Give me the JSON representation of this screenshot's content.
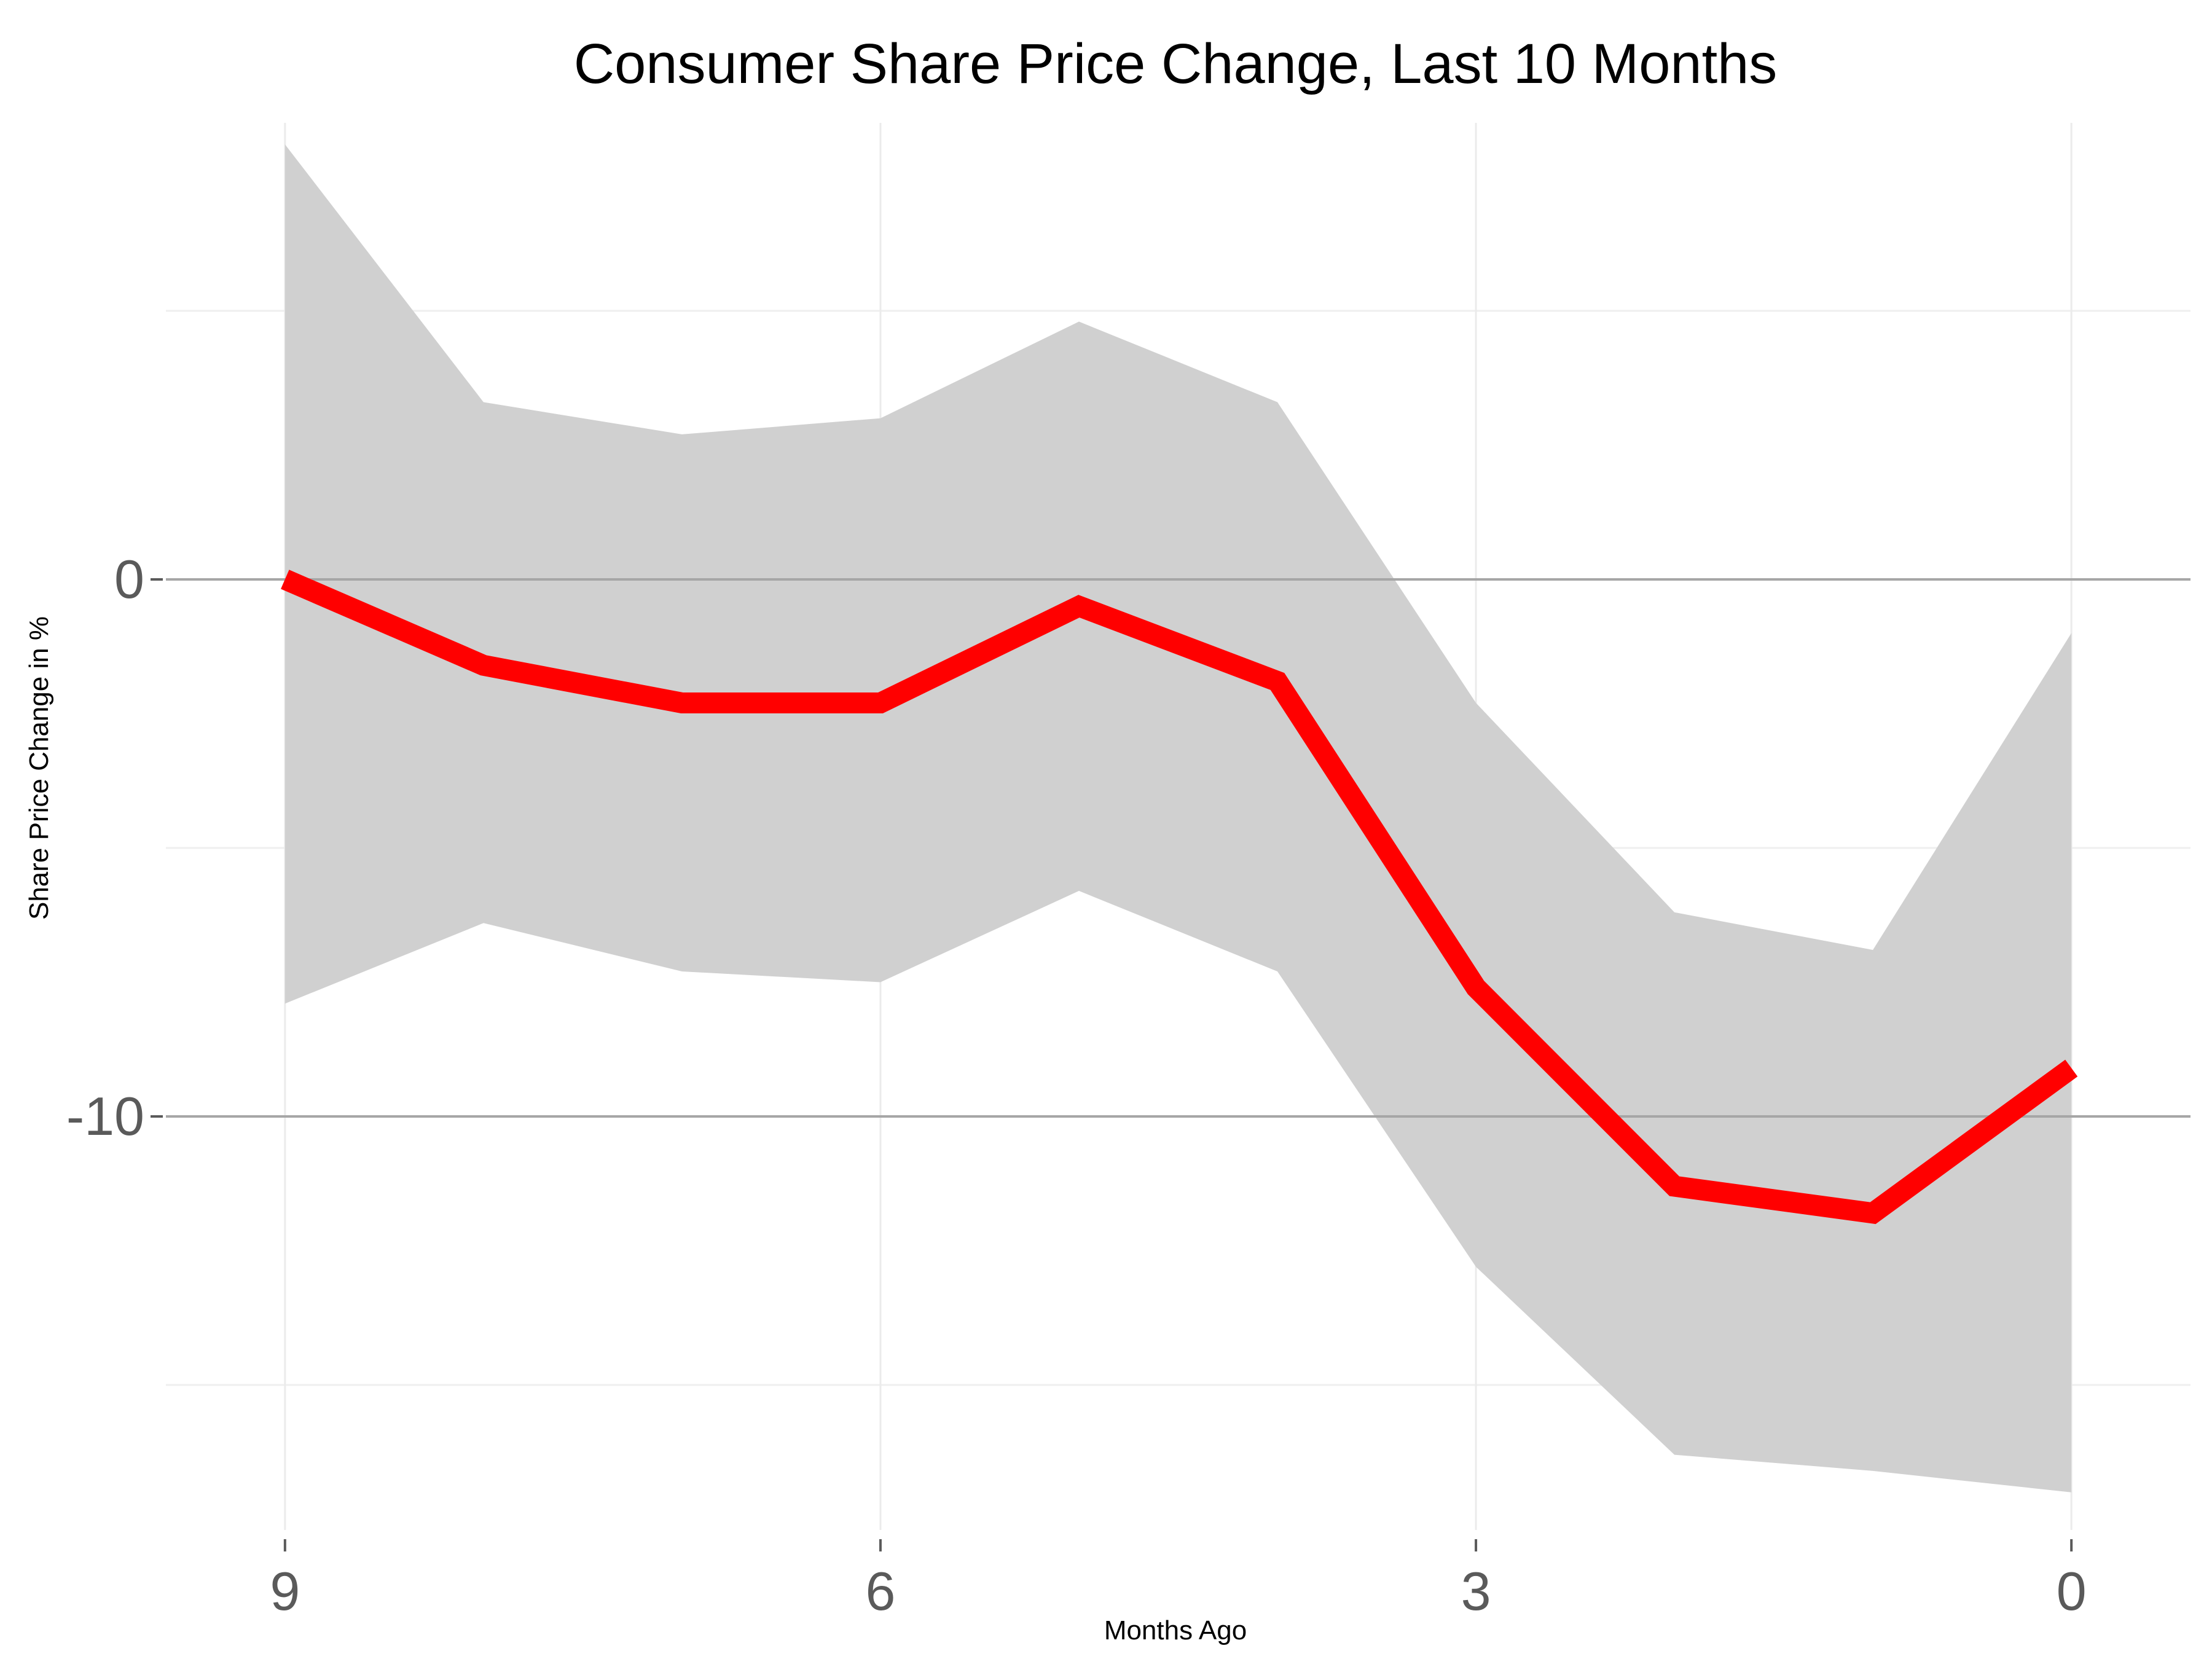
{
  "chart_data": {
    "type": "line",
    "title": "Consumer Share Price Change, Last 10 Months",
    "xlabel": "Months Ago",
    "ylabel": "Share Price Change in %",
    "x": [
      9,
      8,
      7,
      6,
      5,
      4,
      3,
      2,
      1,
      0
    ],
    "x_reversed": true,
    "xticks": [
      9,
      6,
      3,
      0
    ],
    "yticks": [
      0,
      -10
    ],
    "ylim": [
      -17.7,
      8.5
    ],
    "xlim": [
      9.6,
      -0.6
    ],
    "grid": true,
    "series": [
      {
        "values": [
          0.0,
          -1.6,
          -2.3,
          -2.3,
          -0.5,
          -1.9,
          -7.6,
          -11.3,
          -11.8,
          -9.1
        ],
        "color": "#ff0000"
      }
    ],
    "band": {
      "upper": [
        8.1,
        3.3,
        2.7,
        3.0,
        4.8,
        3.3,
        -2.3,
        -6.2,
        -6.9,
        -1.0
      ],
      "lower": [
        -7.9,
        -6.4,
        -7.3,
        -7.5,
        -5.8,
        -7.3,
        -12.8,
        -16.3,
        -16.6,
        -17.0
      ],
      "color": "#d0d0d0"
    }
  }
}
